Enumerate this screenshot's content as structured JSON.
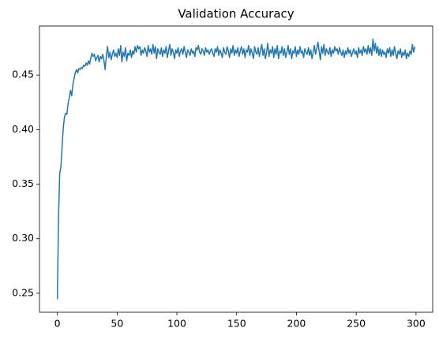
{
  "chart_data": {
    "type": "line",
    "title": "Validation Accuracy",
    "x": [
      0,
      1,
      2,
      3,
      4,
      5,
      6,
      7,
      8,
      9,
      10,
      11,
      12,
      13,
      14,
      15,
      16,
      17,
      18,
      19,
      20,
      21,
      22,
      23,
      24,
      25,
      26,
      27,
      28,
      29,
      30,
      31,
      32,
      33,
      34,
      35,
      36,
      37,
      38,
      39,
      40,
      41,
      42,
      43,
      44,
      45,
      46,
      47,
      48,
      49,
      50,
      51,
      52,
      53,
      54,
      55,
      56,
      57,
      58,
      59,
      60,
      61,
      62,
      63,
      64,
      65,
      66,
      67,
      68,
      69,
      70,
      71,
      72,
      73,
      74,
      75,
      76,
      77,
      78,
      79,
      80,
      81,
      82,
      83,
      84,
      85,
      86,
      87,
      88,
      89,
      90,
      91,
      92,
      93,
      94,
      95,
      96,
      97,
      98,
      99,
      100,
      101,
      102,
      103,
      104,
      105,
      106,
      107,
      108,
      109,
      110,
      111,
      112,
      113,
      114,
      115,
      116,
      117,
      118,
      119,
      120,
      121,
      122,
      123,
      124,
      125,
      126,
      127,
      128,
      129,
      130,
      131,
      132,
      133,
      134,
      135,
      136,
      137,
      138,
      139,
      140,
      141,
      142,
      143,
      144,
      145,
      146,
      147,
      148,
      149,
      150,
      151,
      152,
      153,
      154,
      155,
      156,
      157,
      158,
      159,
      160,
      161,
      162,
      163,
      164,
      165,
      166,
      167,
      168,
      169,
      170,
      171,
      172,
      173,
      174,
      175,
      176,
      177,
      178,
      179,
      180,
      181,
      182,
      183,
      184,
      185,
      186,
      187,
      188,
      189,
      190,
      191,
      192,
      193,
      194,
      195,
      196,
      197,
      198,
      199,
      200,
      201,
      202,
      203,
      204,
      205,
      206,
      207,
      208,
      209,
      210,
      211,
      212,
      213,
      214,
      215,
      216,
      217,
      218,
      219,
      220,
      221,
      222,
      223,
      224,
      225,
      226,
      227,
      228,
      229,
      230,
      231,
      232,
      233,
      234,
      235,
      236,
      237,
      238,
      239,
      240,
      241,
      242,
      243,
      244,
      245,
      246,
      247,
      248,
      249,
      250,
      251,
      252,
      253,
      254,
      255,
      256,
      257,
      258,
      259,
      260,
      261,
      262,
      263,
      264,
      265,
      266,
      267,
      268,
      269,
      270,
      271,
      272,
      273,
      274,
      275,
      276,
      277,
      278,
      279,
      280,
      281,
      282,
      283,
      284,
      285,
      286,
      287,
      288,
      289,
      290,
      291,
      292,
      293,
      294,
      295,
      296,
      297,
      298,
      299
    ],
    "values": [
      0.2445,
      0.32,
      0.36,
      0.366,
      0.385,
      0.402,
      0.412,
      0.415,
      0.414,
      0.424,
      0.429,
      0.436,
      0.431,
      0.441,
      0.447,
      0.452,
      0.455,
      0.452,
      0.456,
      0.455,
      0.457,
      0.456,
      0.459,
      0.458,
      0.461,
      0.459,
      0.463,
      0.46,
      0.466,
      0.47,
      0.467,
      0.469,
      0.463,
      0.466,
      0.468,
      0.462,
      0.467,
      0.465,
      0.469,
      0.463,
      0.455,
      0.468,
      0.476,
      0.466,
      0.471,
      0.464,
      0.469,
      0.473,
      0.467,
      0.47,
      0.466,
      0.474,
      0.468,
      0.477,
      0.462,
      0.471,
      0.467,
      0.475,
      0.463,
      0.47,
      0.468,
      0.473,
      0.466,
      0.472,
      0.469,
      0.476,
      0.471,
      0.477,
      0.474,
      0.476,
      0.468,
      0.473,
      0.47,
      0.475,
      0.472,
      0.467,
      0.477,
      0.471,
      0.474,
      0.469,
      0.478,
      0.47,
      0.476,
      0.465,
      0.474,
      0.471,
      0.469,
      0.475,
      0.467,
      0.473,
      0.47,
      0.476,
      0.466,
      0.472,
      0.478,
      0.468,
      0.474,
      0.471,
      0.465,
      0.473,
      0.47,
      0.475,
      0.467,
      0.472,
      0.474,
      0.469,
      0.476,
      0.471,
      0.466,
      0.473,
      0.471,
      0.468,
      0.474,
      0.47,
      0.472,
      0.467,
      0.475,
      0.473,
      0.477,
      0.471,
      0.469,
      0.474,
      0.472,
      0.468,
      0.475,
      0.471,
      0.473,
      0.469,
      0.472,
      0.474,
      0.47,
      0.467,
      0.474,
      0.471,
      0.476,
      0.468,
      0.473,
      0.47,
      0.466,
      0.475,
      0.471,
      0.469,
      0.476,
      0.472,
      0.466,
      0.474,
      0.47,
      0.477,
      0.468,
      0.473,
      0.47,
      0.475,
      0.467,
      0.472,
      0.476,
      0.469,
      0.474,
      0.466,
      0.473,
      0.471,
      0.477,
      0.468,
      0.474,
      0.47,
      0.465,
      0.476,
      0.471,
      0.469,
      0.475,
      0.467,
      0.473,
      0.478,
      0.468,
      0.474,
      0.465,
      0.471,
      0.479,
      0.467,
      0.473,
      0.47,
      0.476,
      0.466,
      0.474,
      0.469,
      0.477,
      0.465,
      0.472,
      0.47,
      0.476,
      0.468,
      0.474,
      0.466,
      0.471,
      0.477,
      0.469,
      0.474,
      0.465,
      0.472,
      0.47,
      0.476,
      0.467,
      0.473,
      0.469,
      0.476,
      0.47,
      0.472,
      0.466,
      0.474,
      0.471,
      0.469,
      0.475,
      0.468,
      0.473,
      0.465,
      0.471,
      0.477,
      0.469,
      0.474,
      0.48,
      0.472,
      0.464,
      0.476,
      0.47,
      0.478,
      0.468,
      0.474,
      0.471,
      0.469,
      0.475,
      0.467,
      0.473,
      0.47,
      0.476,
      0.472,
      0.474,
      0.469,
      0.475,
      0.471,
      0.468,
      0.473,
      0.466,
      0.472,
      0.469,
      0.475,
      0.47,
      0.473,
      0.467,
      0.471,
      0.474,
      0.469,
      0.472,
      0.466,
      0.475,
      0.47,
      0.473,
      0.468,
      0.476,
      0.471,
      0.474,
      0.469,
      0.477,
      0.47,
      0.475,
      0.468,
      0.483,
      0.472,
      0.479,
      0.47,
      0.476,
      0.468,
      0.474,
      0.467,
      0.473,
      0.469,
      0.471,
      0.466,
      0.474,
      0.47,
      0.475,
      0.467,
      0.473,
      0.468,
      0.476,
      0.47,
      0.465,
      0.472,
      0.469,
      0.474,
      0.466,
      0.471,
      0.468,
      0.473,
      0.465,
      0.47,
      0.467,
      0.472,
      0.469,
      0.478,
      0.471,
      0.476
    ],
    "color": "#1f77b4",
    "xlim": [
      -14.95,
      313.95
    ],
    "xticks": [
      0,
      50,
      100,
      150,
      200,
      250,
      300
    ],
    "ylim": [
      0.2326,
      0.4949
    ],
    "yticks": [
      0.25,
      {
        "value": 0.3,
        "label": "0.30"
      },
      0.35,
      {
        "value": 0.4,
        "label": "0.40"
      },
      0.45
    ],
    "grid": false
  }
}
